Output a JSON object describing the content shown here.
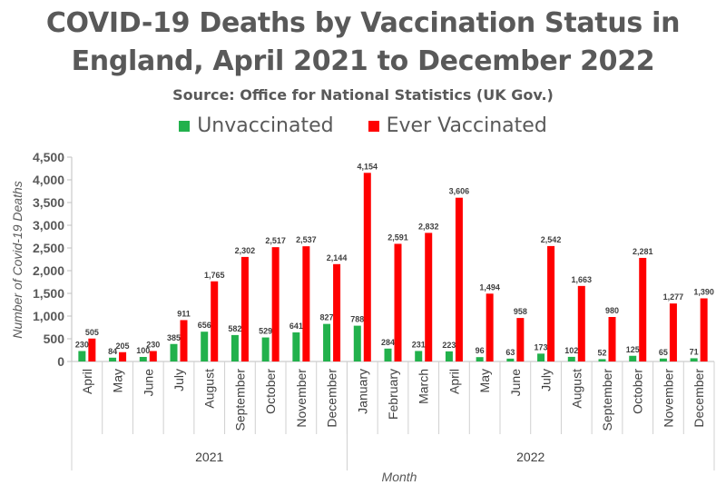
{
  "chart_data": {
    "type": "bar",
    "title_line1": "COVID-19 Deaths by Vaccination Status in",
    "title_line2": "England, April 2021 to December 2022",
    "subtitle": "Source: Office for National Statistics (UK Gov.)",
    "xlabel": "Month",
    "ylabel": "Number of Covid-19 Deaths",
    "ylim": [
      0,
      4500
    ],
    "yticks": [
      "0",
      "500",
      "1,000",
      "1,500",
      "2,000",
      "2,500",
      "3,000",
      "3,500",
      "4,000",
      "4,500"
    ],
    "grid": false,
    "legend_position": "top",
    "groups": [
      {
        "label": "2021",
        "count": 9
      },
      {
        "label": "2022",
        "count": 12
      }
    ],
    "categories": [
      "April",
      "May",
      "June",
      "July",
      "August",
      "September",
      "October",
      "November",
      "December",
      "January",
      "February",
      "March",
      "April",
      "May",
      "June",
      "July",
      "August",
      "September",
      "October",
      "November",
      "December"
    ],
    "series": [
      {
        "name": "Unvaccinated",
        "color": "#22b14c",
        "values": [
          230,
          84,
          100,
          385,
          656,
          582,
          529,
          641,
          827,
          788,
          284,
          231,
          223,
          96,
          63,
          173,
          102,
          52,
          125,
          65,
          71
        ],
        "labels": [
          "230",
          "84",
          "100",
          "385",
          "656",
          "582",
          "529",
          "641",
          "827",
          "788",
          "284",
          "231",
          "223",
          "96",
          "63",
          "173",
          "102",
          "52",
          "125",
          "65",
          "71"
        ]
      },
      {
        "name": "Ever Vaccinated",
        "color": "#ff0000",
        "values": [
          505,
          205,
          230,
          911,
          1765,
          2302,
          2517,
          2537,
          2144,
          4154,
          2591,
          2832,
          3606,
          1494,
          958,
          2542,
          1663,
          980,
          2281,
          1277,
          1390
        ],
        "labels": [
          "505",
          "205",
          "230",
          "911",
          "1,765",
          "2,302",
          "2,517",
          "2,537",
          "2,144",
          "4,154",
          "2,591",
          "2,832",
          "3,606",
          "1,494",
          "958",
          "2,542",
          "1,663",
          "980",
          "2,281",
          "1,277",
          "1,390"
        ]
      }
    ]
  }
}
